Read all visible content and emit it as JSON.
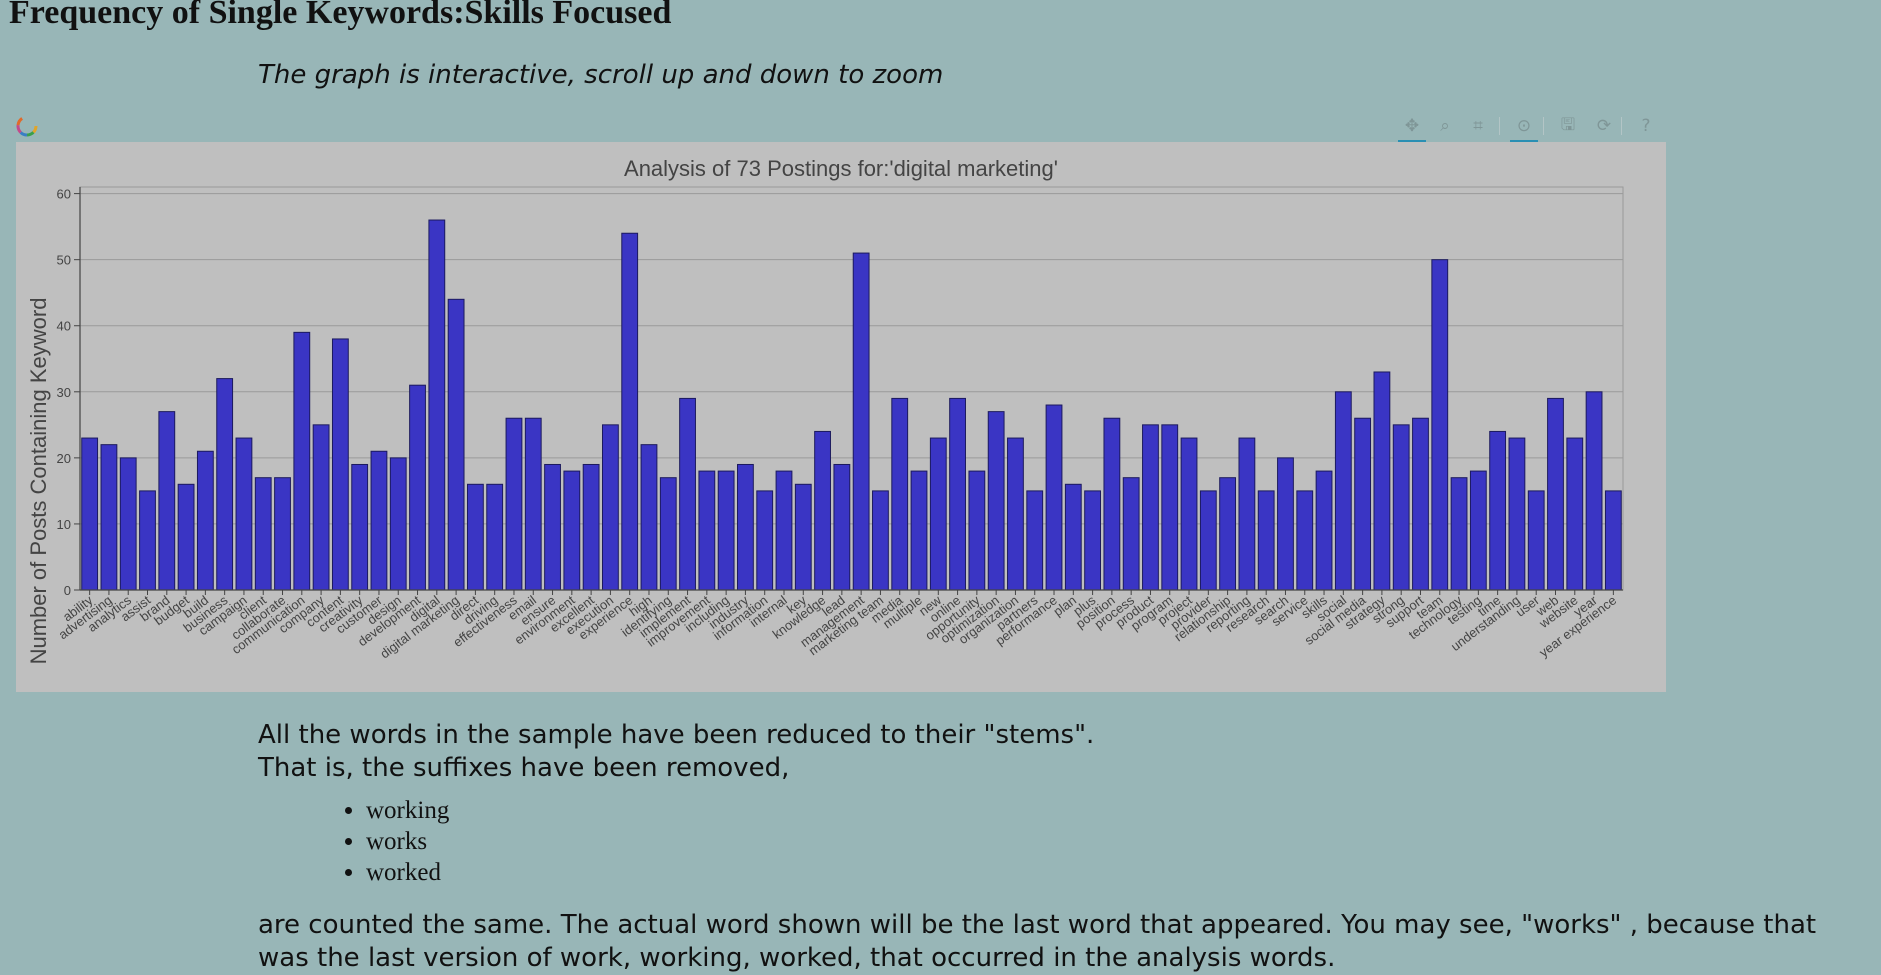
{
  "page": {
    "title": "Frequency of Single Keywords:Skills Focused",
    "note": "The graph is interactive, scroll up and down to zoom"
  },
  "toolbar": {
    "tools": [
      {
        "name": "pan-tool",
        "icon": "move-icon",
        "glyph": "✥",
        "active": true
      },
      {
        "name": "box-zoom-tool",
        "icon": "zoom-icon",
        "glyph": "⌕",
        "active": false
      },
      {
        "name": "reset-view-tool",
        "icon": "resize-icon",
        "glyph": "⌗",
        "active": false
      },
      {
        "name": "wheel-zoom-tool",
        "icon": "wheel-zoom-icon",
        "glyph": "⊙",
        "active": true
      },
      {
        "name": "save-tool",
        "icon": "save-icon",
        "glyph": "🖫",
        "active": false
      },
      {
        "name": "refresh-tool",
        "icon": "refresh-icon",
        "glyph": "⟳",
        "active": false
      },
      {
        "name": "help-tool",
        "icon": "help-icon",
        "glyph": "?",
        "active": false
      }
    ]
  },
  "chart_data": {
    "type": "bar",
    "title": "Analysis of 73 Postings for:'digital marketing'",
    "xlabel": "",
    "ylabel": "Number of Posts Containing Keyword",
    "ylim": [
      0,
      61
    ],
    "yticks": [
      0,
      10,
      20,
      30,
      40,
      50,
      60
    ],
    "grid": true,
    "bar_color": "#3a35c4",
    "categories": [
      "ability",
      "advertising",
      "analytics",
      "assist",
      "brand",
      "budget",
      "build",
      "business",
      "campaign",
      "client",
      "collaborate",
      "communication",
      "company",
      "content",
      "creativity",
      "customer",
      "design",
      "development",
      "digital",
      "digital marketing",
      "direct",
      "driving",
      "effectiveness",
      "email",
      "ensure",
      "environment",
      "excellent",
      "execution",
      "experience",
      "high",
      "identifying",
      "implement",
      "improvement",
      "including",
      "industry",
      "information",
      "internal",
      "key",
      "knowledge",
      "lead",
      "management",
      "marketing team",
      "media",
      "multiple",
      "new",
      "online",
      "opportunity",
      "optimization",
      "organization",
      "partners",
      "performance",
      "plan",
      "plus",
      "position",
      "process",
      "product",
      "program",
      "project",
      "provider",
      "relationship",
      "reporting",
      "research",
      "search",
      "service",
      "skills",
      "social",
      "social media",
      "strategy",
      "strong",
      "support",
      "team",
      "technology",
      "testing",
      "time",
      "understanding",
      "user",
      "web",
      "website",
      "year",
      "year experience"
    ],
    "values": [
      23,
      22,
      20,
      15,
      27,
      16,
      21,
      32,
      23,
      17,
      17,
      39,
      25,
      38,
      19,
      21,
      20,
      31,
      56,
      44,
      16,
      16,
      26,
      26,
      19,
      18,
      19,
      25,
      54,
      22,
      17,
      29,
      18,
      18,
      19,
      15,
      18,
      16,
      24,
      19,
      51,
      15,
      29,
      18,
      23,
      29,
      18,
      27,
      23,
      15,
      28,
      16,
      15,
      26,
      17,
      25,
      25,
      23,
      15,
      17,
      23,
      15,
      20,
      15,
      18,
      30,
      26,
      33,
      25,
      26,
      50,
      17,
      18,
      24,
      23,
      15,
      29,
      23,
      30,
      15
    ]
  },
  "content": {
    "line1": "All the words in the sample have been reduced to their \"stems\".",
    "line2": "That is, the suffixes have been removed,",
    "examples": [
      "working",
      "works",
      "worked"
    ],
    "line3": "are counted the same. The actual word shown will be the last word that appeared. You may see, \"works\" , because that",
    "line4": "was the last version of work, working, worked, that occurred in the analysis words."
  }
}
